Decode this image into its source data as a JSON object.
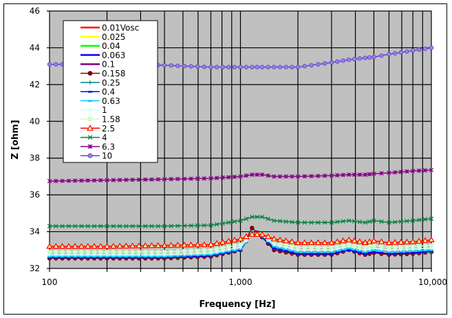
{
  "chart_data": {
    "type": "line",
    "title": "",
    "xlabel": "Frequency [Hz]",
    "ylabel": "Z [ohm]",
    "xscale": "log",
    "xlim": [
      100,
      10000
    ],
    "ylim": [
      32,
      46
    ],
    "x_ticks": [
      "100",
      "1,000",
      "10,000"
    ],
    "y_ticks": [
      "32",
      "34",
      "36",
      "38",
      "40",
      "42",
      "44",
      "46"
    ],
    "grid": true,
    "plot_background": "#c0c0c0",
    "legend_position": "upper-left-inside",
    "x": [
      100,
      200,
      400,
      700,
      1000,
      1150,
      1300,
      1500,
      2000,
      3000,
      3700,
      4500,
      5000,
      6000,
      8000,
      10000
    ],
    "series": [
      {
        "name": "0.01Vosc",
        "color": "#ff0000",
        "marker": "none",
        "values": [
          32.6,
          32.6,
          32.6,
          32.7,
          33.0,
          33.9,
          33.7,
          33.1,
          32.8,
          32.8,
          33.0,
          32.8,
          32.9,
          32.8,
          32.85,
          32.9
        ]
      },
      {
        "name": "0.025",
        "color": "#ffff00",
        "marker": "none",
        "values": [
          32.6,
          32.6,
          32.6,
          32.7,
          33.0,
          33.9,
          33.7,
          33.1,
          32.8,
          32.8,
          33.0,
          32.8,
          32.9,
          32.8,
          32.85,
          32.9
        ]
      },
      {
        "name": "0.04",
        "color": "#00ff00",
        "marker": "none",
        "values": [
          32.6,
          32.6,
          32.6,
          32.7,
          33.0,
          33.9,
          33.7,
          33.1,
          32.8,
          32.8,
          33.0,
          32.8,
          32.9,
          32.8,
          32.85,
          32.9
        ]
      },
      {
        "name": "0.063",
        "color": "#0000ff",
        "marker": "none",
        "values": [
          32.6,
          32.6,
          32.6,
          32.7,
          33.0,
          33.9,
          33.7,
          33.1,
          32.8,
          32.8,
          33.0,
          32.8,
          32.9,
          32.8,
          32.85,
          32.9
        ]
      },
      {
        "name": "0.1",
        "color": "#800080",
        "marker": "none",
        "values": [
          32.6,
          32.6,
          32.6,
          32.7,
          33.0,
          34.0,
          33.7,
          33.1,
          32.8,
          32.8,
          33.0,
          32.8,
          32.9,
          32.8,
          32.85,
          32.9
        ]
      },
      {
        "name": "0.158",
        "color": "#800000",
        "marker": "circle",
        "values": [
          32.55,
          32.55,
          32.55,
          32.65,
          33.0,
          34.2,
          33.7,
          33.0,
          32.75,
          32.75,
          33.0,
          32.75,
          32.85,
          32.75,
          32.8,
          32.9
        ]
      },
      {
        "name": "0.25",
        "color": "#008080",
        "marker": "plus",
        "values": [
          32.6,
          32.6,
          32.6,
          32.7,
          33.0,
          34.0,
          33.7,
          33.1,
          32.8,
          32.8,
          33.0,
          32.8,
          32.9,
          32.8,
          32.85,
          32.9
        ]
      },
      {
        "name": "0.4",
        "color": "#0000ff",
        "marker": "dash",
        "values": [
          32.6,
          32.6,
          32.6,
          32.7,
          33.0,
          33.9,
          33.7,
          33.1,
          32.8,
          32.8,
          33.0,
          32.8,
          32.9,
          32.8,
          32.85,
          32.95
        ]
      },
      {
        "name": "0.63",
        "color": "#00ccff",
        "marker": "dash",
        "values": [
          32.65,
          32.65,
          32.65,
          32.75,
          33.05,
          33.9,
          33.75,
          33.2,
          32.9,
          32.9,
          33.1,
          32.9,
          33.0,
          32.9,
          32.95,
          33.0
        ]
      },
      {
        "name": "1",
        "color": "#ccffff",
        "marker": "diamond",
        "values": [
          32.75,
          32.75,
          32.75,
          32.85,
          33.15,
          33.85,
          33.8,
          33.3,
          33.0,
          33.0,
          33.2,
          33.0,
          33.1,
          33.0,
          33.05,
          33.1
        ]
      },
      {
        "name": "1.58",
        "color": "#ccffcc",
        "marker": "square",
        "values": [
          32.9,
          32.9,
          32.9,
          33.0,
          33.3,
          33.85,
          33.85,
          33.4,
          33.15,
          33.15,
          33.3,
          33.15,
          33.25,
          33.15,
          33.2,
          33.25
        ]
      },
      {
        "name": "2.5",
        "color": "#ff0000",
        "marker": "triangle",
        "values": [
          33.2,
          33.2,
          33.25,
          33.3,
          33.6,
          33.85,
          33.85,
          33.6,
          33.4,
          33.4,
          33.55,
          33.4,
          33.5,
          33.4,
          33.45,
          33.55
        ]
      },
      {
        "name": "4",
        "color": "#008040",
        "marker": "x",
        "values": [
          34.3,
          34.3,
          34.3,
          34.35,
          34.6,
          34.8,
          34.8,
          34.6,
          34.5,
          34.5,
          34.6,
          34.5,
          34.6,
          34.5,
          34.6,
          34.7
        ]
      },
      {
        "name": "6.3",
        "color": "#800080",
        "marker": "star",
        "values": [
          36.75,
          36.8,
          36.85,
          36.9,
          37.0,
          37.1,
          37.1,
          37.0,
          37.0,
          37.05,
          37.1,
          37.1,
          37.15,
          37.2,
          37.3,
          37.35
        ]
      },
      {
        "name": "10",
        "color": "#6040c0",
        "marker": "circle",
        "values": [
          43.1,
          43.1,
          43.05,
          42.95,
          42.95,
          42.95,
          42.95,
          42.95,
          42.95,
          43.2,
          43.35,
          43.45,
          43.5,
          43.65,
          43.85,
          44.0
        ]
      }
    ]
  },
  "axes": {
    "xlabel": "Frequency [Hz]",
    "ylabel": "Z [ohm]"
  }
}
